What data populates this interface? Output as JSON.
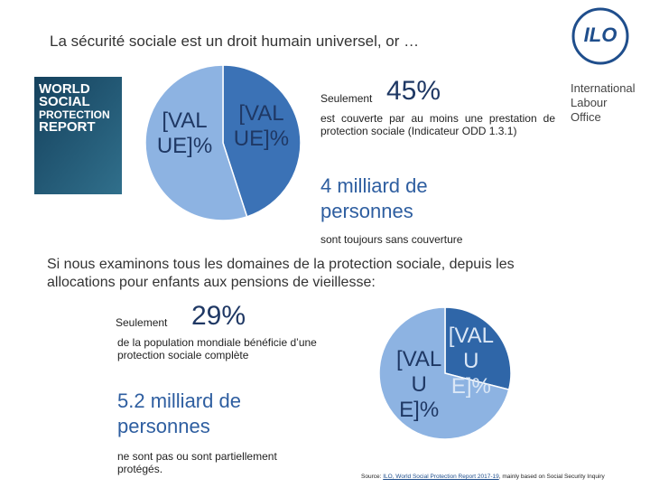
{
  "title": "La sécurité sociale est un droit humain universel, or …",
  "logo": {
    "emblem": "ILO",
    "lines": [
      "International",
      "Labour",
      "Office"
    ]
  },
  "report_cover": {
    "lines": [
      "WORLD",
      "SOCIAL",
      "PROTECTION",
      "REPORT"
    ]
  },
  "stat1": {
    "prefix": "Seulement",
    "figure": "45%",
    "description": "est couverte par au moins une prestation de protection sociale (Indicateur ODD 1.3.1)",
    "count": "4 milliard de personnes",
    "count_note": "sont toujours sans couverture"
  },
  "intro": "Si nous examinons tous les domaines de la protection sociale, depuis les allocations pour enfants aux pensions de vieillesse:",
  "stat2": {
    "prefix": "Seulement",
    "figure": "29%",
    "description": "de la population mondiale bénéficie d’une protection sociale complète",
    "count": "5.2 milliard de personnes",
    "count_note": "ne sont pas ou sont partiellement protégés."
  },
  "source": {
    "prefix": "Source: ",
    "link": "ILO, World Social Protection Report 2017-19",
    "suffix": ", mainly based on Social Security Inquiry"
  },
  "chart_data": [
    {
      "type": "pie",
      "values": [
        45,
        55
      ],
      "value_labels": [
        "[VALUE]%",
        "[VALUE]%"
      ],
      "colors": [
        "#3b72b6",
        "#8db3e2"
      ]
    },
    {
      "type": "pie",
      "values": [
        29,
        71
      ],
      "value_labels": [
        "[VALUE]%",
        "[VALUE]%"
      ],
      "colors": [
        "#2f66a8",
        "#8db3e2"
      ]
    }
  ]
}
